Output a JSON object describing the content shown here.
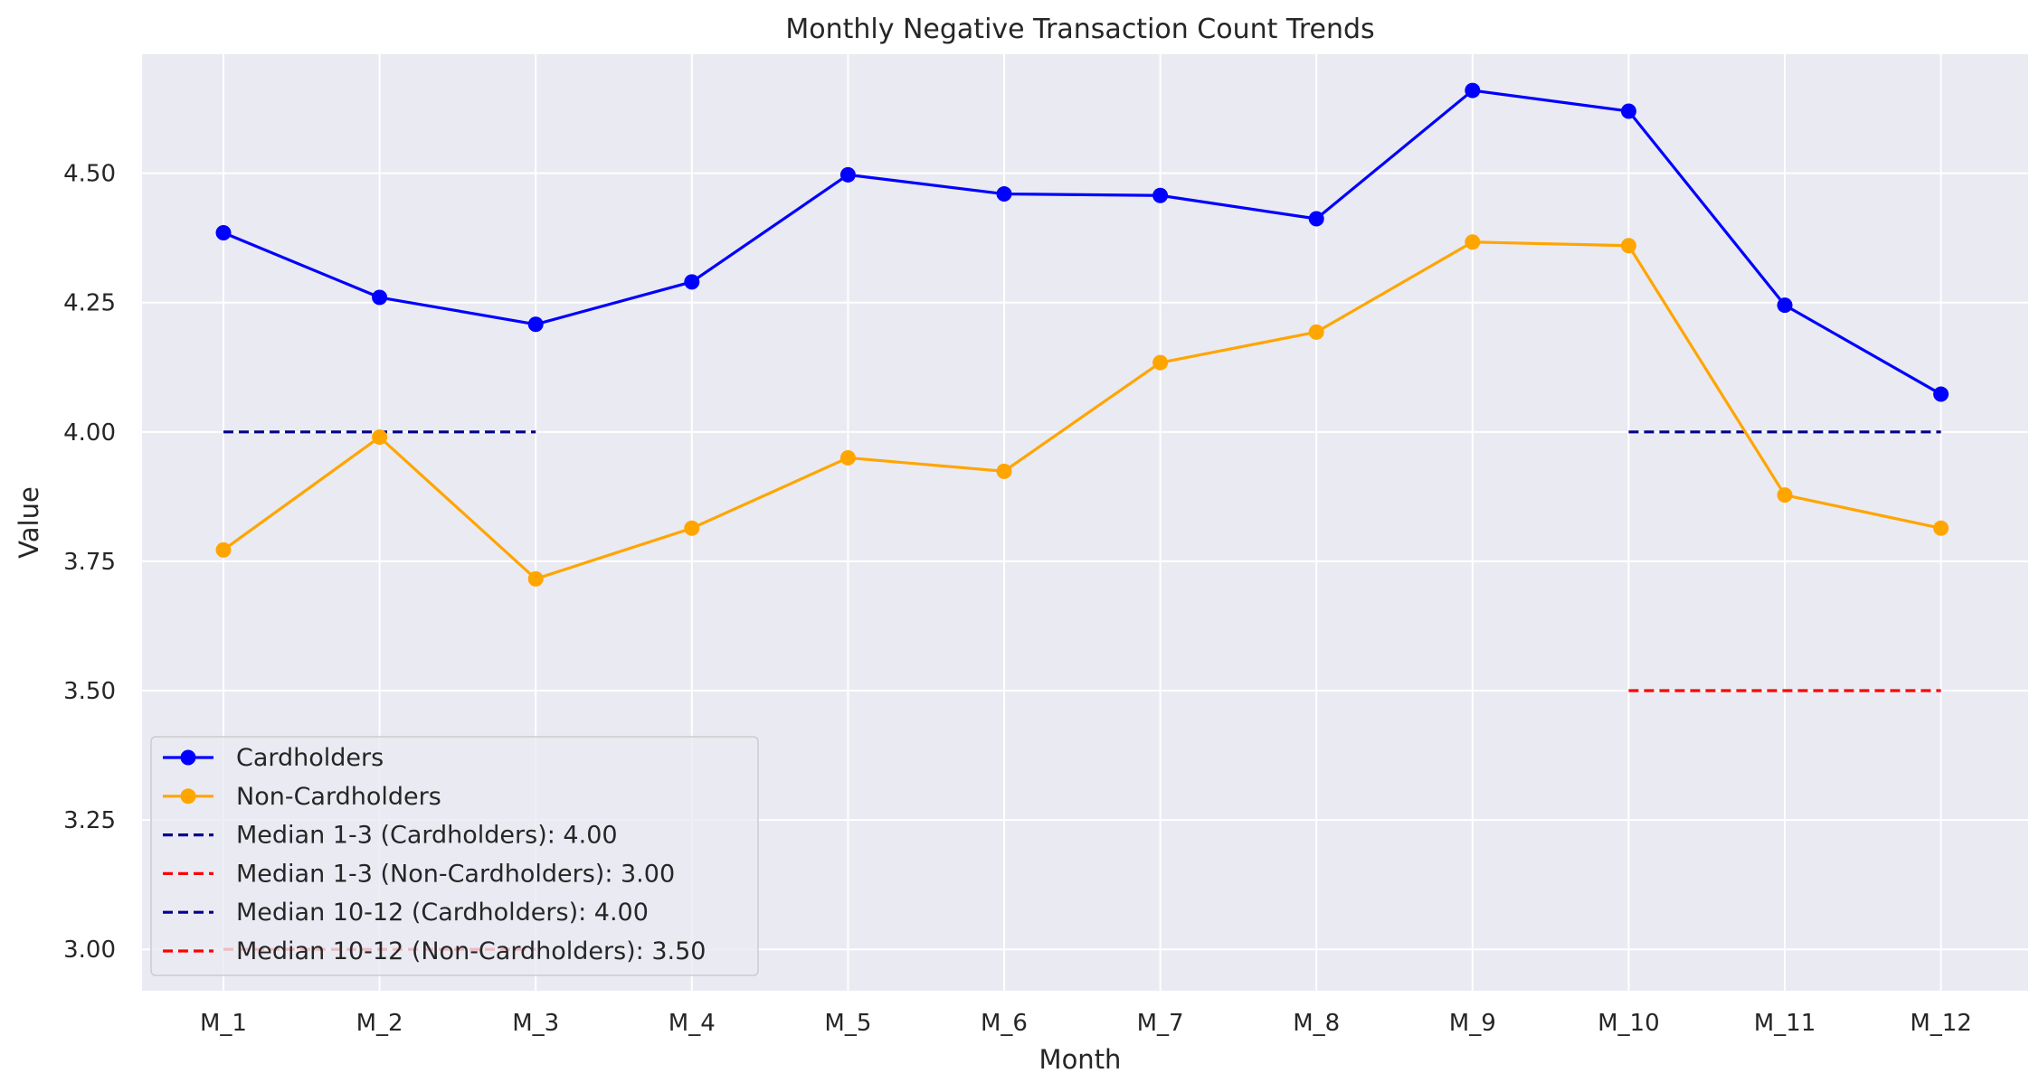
{
  "chart_data": {
    "type": "line",
    "title": "Monthly Negative Transaction Count Trends",
    "xlabel": "Month",
    "ylabel": "Value",
    "categories": [
      "M_1",
      "M_2",
      "M_3",
      "M_4",
      "M_5",
      "M_6",
      "M_7",
      "M_8",
      "M_9",
      "M_10",
      "M_11",
      "M_12"
    ],
    "ylim": [
      2.92,
      4.73
    ],
    "yticks": [
      "3.00",
      "3.25",
      "3.50",
      "3.75",
      "4.00",
      "4.25",
      "4.50"
    ],
    "grid": true,
    "legend_position": "lower-left",
    "series": [
      {
        "name": "Cardholders",
        "color": "#0000ff",
        "values": [
          4.385,
          4.26,
          4.208,
          4.29,
          4.497,
          4.46,
          4.457,
          4.412,
          4.66,
          4.62,
          4.245,
          4.073
        ]
      },
      {
        "name": "Non-Cardholders",
        "color": "#ffa500",
        "values": [
          3.772,
          3.99,
          3.716,
          3.814,
          3.95,
          3.924,
          4.134,
          4.193,
          4.367,
          4.36,
          3.878,
          3.814
        ]
      }
    ],
    "reference_lines": [
      {
        "label": "Median 1-3 (Cardholders): 4.00",
        "value": 4.0,
        "x_from": "M_1",
        "x_to": "M_3",
        "color": "#00008b",
        "style": "dashed"
      },
      {
        "label": "Median 1-3 (Non-Cardholders): 3.00",
        "value": 3.0,
        "x_from": "M_1",
        "x_to": "M_3",
        "color": "#ff0000",
        "style": "dashed"
      },
      {
        "label": "Median 10-12 (Cardholders): 4.00",
        "value": 4.0,
        "x_from": "M_10",
        "x_to": "M_12",
        "color": "#00008b",
        "style": "dashed"
      },
      {
        "label": "Median 10-12 (Non-Cardholders): 3.50",
        "value": 3.5,
        "x_from": "M_10",
        "x_to": "M_12",
        "color": "#ff0000",
        "style": "dashed"
      }
    ]
  }
}
